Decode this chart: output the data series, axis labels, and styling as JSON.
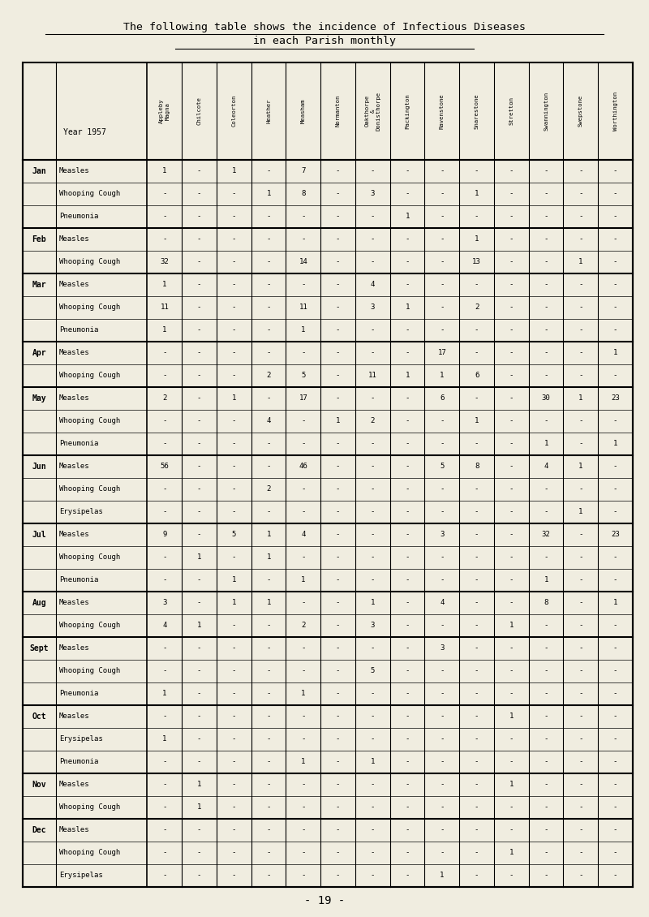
{
  "title_line1": "The following table shows the incidence of Infectious Diseases",
  "title_line2": "in each Parish monthly",
  "page_number": "- 19 -",
  "bg_color": "#f0ede0",
  "col_abbrevs": [
    "Appleby\nMagna",
    "Chilcote",
    "Coleorton",
    "Heather",
    "Measham",
    "Normanton",
    "Oakthorpe\n&\nDonisthorpe",
    "Packington",
    "Ravenstone",
    "Snarestone",
    "Stretton",
    "Swannington",
    "Swepstone",
    "Worthington"
  ],
  "rows": [
    [
      "Jan",
      "Measles",
      "1",
      "-",
      "1",
      "-",
      "7",
      "-",
      "-",
      "-",
      "-",
      "-",
      "-",
      "-",
      "-"
    ],
    [
      "",
      "Whooping Cough",
      "-",
      "-",
      "-",
      "1",
      "8",
      "-",
      "3",
      "-",
      "-",
      "1",
      "-",
      "-",
      "-"
    ],
    [
      "",
      "Pneumonia",
      "-",
      "-",
      "-",
      "-",
      "-",
      "-",
      "-",
      "1",
      "-",
      "-",
      "-",
      "-",
      "-"
    ],
    [
      "Feb",
      "Measles",
      "-",
      "-",
      "-",
      "-",
      "-",
      "-",
      "-",
      "-",
      "-",
      "1",
      "-",
      "-",
      "-"
    ],
    [
      "",
      "Whooping Cough",
      "32",
      "-",
      "-",
      "-",
      "14",
      "-",
      "-",
      "-",
      "-",
      "13",
      "-",
      "-",
      "1"
    ],
    [
      "Mar",
      "Measles",
      "1",
      "-",
      "-",
      "-",
      "-",
      "-",
      "4",
      "-",
      "-",
      "-",
      "-",
      "-",
      "-"
    ],
    [
      "",
      "Whooping Cough",
      "11",
      "-",
      "-",
      "-",
      "11",
      "-",
      "3",
      "1",
      "-",
      "2",
      "-",
      "-",
      "-"
    ],
    [
      "",
      "Pneumonia",
      "1",
      "-",
      "-",
      "-",
      "1",
      "-",
      "-",
      "-",
      "-",
      "-",
      "-",
      "-",
      "-"
    ],
    [
      "Apr",
      "Measles",
      "-",
      "-",
      "-",
      "-",
      "-",
      "-",
      "-",
      "-",
      "17",
      "-",
      "-",
      "-",
      "-"
    ],
    [
      "",
      "Whooping Cough",
      "-",
      "-",
      "-",
      "2",
      "5",
      "-",
      "11",
      "1",
      "1",
      "6",
      "-",
      "-",
      "-"
    ],
    [
      "May",
      "Measles",
      "2",
      "-",
      "1",
      "-",
      "17",
      "-",
      "-",
      "-",
      "6",
      "-",
      "-",
      "30",
      "1"
    ],
    [
      "",
      "Whooping Cough",
      "-",
      "-",
      "-",
      "4",
      "-",
      "1",
      "2",
      "-",
      "-",
      "1",
      "-",
      "-",
      "-"
    ],
    [
      "",
      "Pneumonia",
      "-",
      "-",
      "-",
      "-",
      "-",
      "-",
      "-",
      "-",
      "-",
      "-",
      "-",
      "1",
      "-"
    ],
    [
      "Jun",
      "Measles",
      "56",
      "-",
      "-",
      "-",
      "46",
      "-",
      "-",
      "-",
      "5",
      "8",
      "-",
      "4",
      "1"
    ],
    [
      "",
      "Whooping Cough",
      "-",
      "-",
      "-",
      "2",
      "-",
      "-",
      "-",
      "-",
      "-",
      "-",
      "-",
      "-",
      "-"
    ],
    [
      "",
      "Erysipelas",
      "-",
      "-",
      "-",
      "-",
      "-",
      "-",
      "-",
      "-",
      "-",
      "-",
      "-",
      "-",
      "1"
    ],
    [
      "Jul",
      "Measles",
      "9",
      "-",
      "5",
      "1",
      "4",
      "-",
      "-",
      "-",
      "3",
      "-",
      "-",
      "32",
      "-"
    ],
    [
      "",
      "Whooping Cough",
      "-",
      "1",
      "-",
      "1",
      "-",
      "-",
      "-",
      "-",
      "-",
      "-",
      "-",
      "-",
      "-"
    ],
    [
      "",
      "Pneumonia",
      "-",
      "-",
      "1",
      "-",
      "1",
      "-",
      "-",
      "-",
      "-",
      "-",
      "-",
      "1",
      "-"
    ],
    [
      "Aug",
      "Measles",
      "3",
      "-",
      "1",
      "1",
      "-",
      "-",
      "1",
      "-",
      "4",
      "-",
      "-",
      "8",
      "-"
    ],
    [
      "",
      "Whooping Cough",
      "4",
      "1",
      "-",
      "-",
      "2",
      "-",
      "3",
      "-",
      "-",
      "-",
      "1",
      "-",
      "-"
    ],
    [
      "Sept",
      "Measles",
      "-",
      "-",
      "-",
      "-",
      "-",
      "-",
      "-",
      "-",
      "3",
      "-",
      "-",
      "-",
      "-"
    ],
    [
      "",
      "Whooping Cough",
      "-",
      "-",
      "-",
      "-",
      "-",
      "-",
      "5",
      "-",
      "-",
      "-",
      "-",
      "-",
      "-"
    ],
    [
      "",
      "Pneumonia",
      "1",
      "-",
      "-",
      "-",
      "1",
      "-",
      "-",
      "-",
      "-",
      "-",
      "-",
      "-",
      "-"
    ],
    [
      "Oct",
      "Measles",
      "-",
      "-",
      "-",
      "-",
      "-",
      "-",
      "-",
      "-",
      "-",
      "-",
      "1",
      "-",
      "-"
    ],
    [
      "",
      "Erysipelas",
      "1",
      "-",
      "-",
      "-",
      "-",
      "-",
      "-",
      "-",
      "-",
      "-",
      "-",
      "-",
      "-"
    ],
    [
      "",
      "Pneumonia",
      "-",
      "-",
      "-",
      "-",
      "1",
      "-",
      "1",
      "-",
      "-",
      "-",
      "-",
      "-",
      "-"
    ],
    [
      "Nov",
      "Measles",
      "-",
      "1",
      "-",
      "-",
      "-",
      "-",
      "-",
      "-",
      "-",
      "-",
      "1",
      "-",
      "-"
    ],
    [
      "",
      "Whooping Cough",
      "-",
      "1",
      "-",
      "-",
      "-",
      "-",
      "-",
      "-",
      "-",
      "-",
      "-",
      "-",
      "-"
    ],
    [
      "Dec",
      "Measles",
      "-",
      "-",
      "-",
      "-",
      "-",
      "-",
      "-",
      "-",
      "-",
      "-",
      "-",
      "-",
      "-"
    ],
    [
      "",
      "Whooping Cough",
      "-",
      "-",
      "-",
      "-",
      "-",
      "-",
      "-",
      "-",
      "-",
      "-",
      "1",
      "-",
      "-"
    ],
    [
      "",
      "Erysipelas",
      "-",
      "-",
      "-",
      "-",
      "-",
      "-",
      "-",
      "-",
      "1",
      "-",
      "-",
      "-",
      "-"
    ]
  ],
  "last_col_values": [
    "-",
    "-",
    "-",
    "-",
    "-",
    "-",
    "-",
    "-",
    "1",
    "-",
    "23",
    "-",
    "1",
    "-",
    "-",
    "-",
    "23",
    "-",
    "-",
    "1",
    "-",
    "-",
    "-",
    "-",
    "-",
    "-",
    "-",
    "-",
    "-",
    "-",
    "-",
    "-"
  ],
  "month_start_rows": [
    0,
    3,
    5,
    8,
    10,
    13,
    16,
    19,
    21,
    24,
    27,
    29
  ]
}
